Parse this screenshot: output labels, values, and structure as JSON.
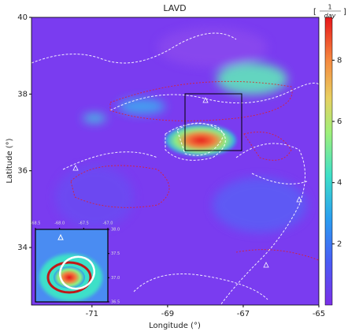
{
  "chart_data": {
    "type": "heatmap",
    "title": "LAVD",
    "x_label": "Longitude (°)",
    "y_label": "Latitude (°)",
    "xlim": [
      -72.6,
      -65
    ],
    "xticks": [
      -71,
      -69,
      -67,
      -65
    ],
    "ylim": [
      32.5,
      40
    ],
    "yticks": [
      34,
      36,
      38,
      40
    ],
    "colorbar": {
      "label_numerator": "1",
      "label_denominator": "day",
      "lim": [
        0,
        9.4
      ],
      "ticks": [
        2,
        4,
        6,
        8
      ]
    },
    "inset": {
      "xlim": [
        -68.5,
        -67
      ],
      "xticks": [
        {
          "value": -68.5,
          "label": "-68.5"
        },
        {
          "value": -68,
          "label": "-68.0"
        },
        {
          "value": -67.5,
          "label": "-67.5"
        },
        {
          "value": -67,
          "label": "-67.0"
        }
      ],
      "ylim": [
        36.5,
        38
      ],
      "yticks": [
        {
          "value": 38,
          "label": "38.0"
        },
        {
          "value": 37.5,
          "label": "37.5"
        },
        {
          "value": 37,
          "label": "37.0"
        },
        {
          "value": 36.5,
          "label": "36.5"
        }
      ]
    }
  }
}
